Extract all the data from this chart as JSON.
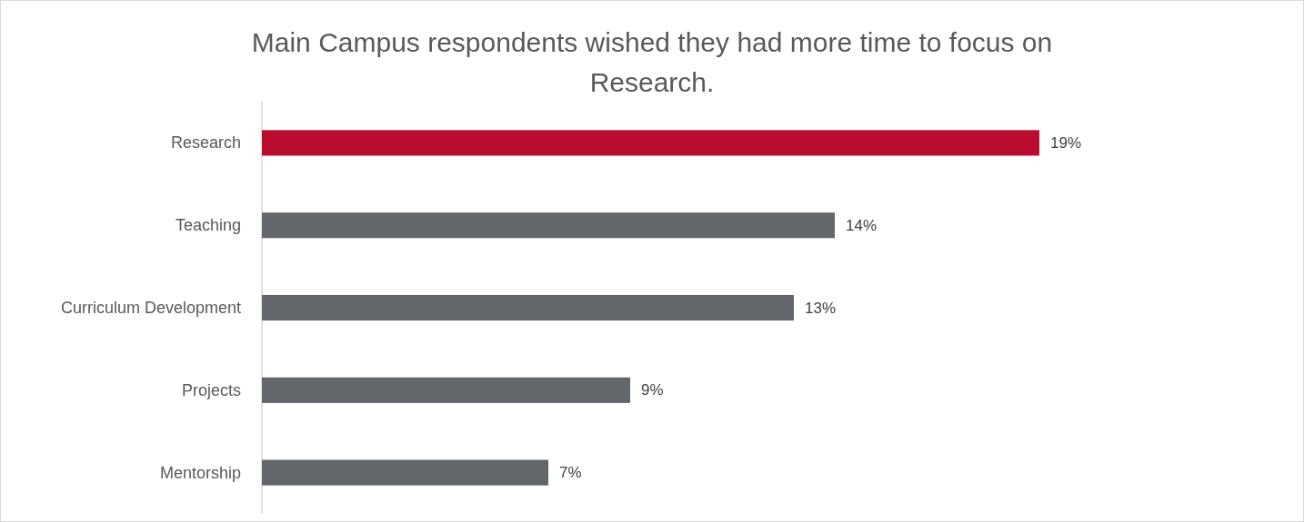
{
  "chart_data": {
    "type": "bar",
    "orientation": "horizontal",
    "relative": false,
    "title": "Main Campus respondents wished they had more time to focus on Research.",
    "categories": [
      "Research",
      "Teaching",
      "Curriculum Development",
      "Projects",
      "Mentorship"
    ],
    "values": [
      19,
      14,
      13,
      9,
      7
    ],
    "colors": [
      "#ba0c2f",
      "#63666a",
      "#63666a",
      "#63666a",
      "#63666a"
    ],
    "value_labels": [
      "19%",
      "14%",
      "13%",
      "9%",
      "7%"
    ]
  }
}
